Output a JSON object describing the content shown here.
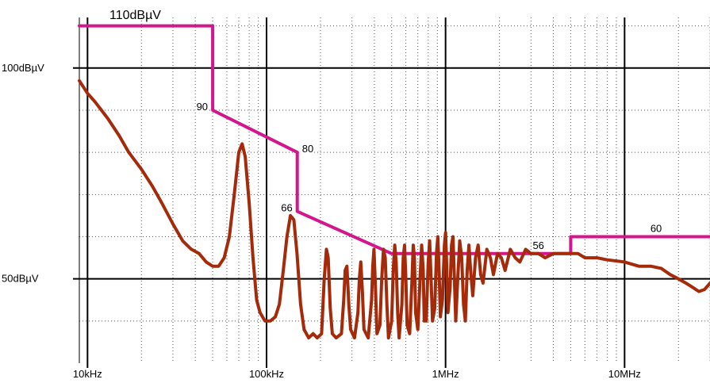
{
  "chart_data": {
    "type": "line",
    "title": "",
    "top_label": "110dBµV",
    "xlabel": "",
    "ylabel": "",
    "x_scale": "log",
    "xlim_hz": [
      9000,
      30000000
    ],
    "ylim_dbuv": [
      30,
      112
    ],
    "grid": true,
    "x_ticks": [
      {
        "value": 10000,
        "label": "10kHz"
      },
      {
        "value": 100000,
        "label": "100kHz"
      },
      {
        "value": 1000000,
        "label": "1MHz"
      },
      {
        "value": 10000000,
        "label": "10MHz"
      }
    ],
    "y_ticks": [
      {
        "value": 100,
        "label": "100dBµV"
      },
      {
        "value": 50,
        "label": "50dBµV"
      }
    ],
    "colors": {
      "limit": "#d4168c",
      "measurement": "#a52a0a",
      "grid": "#000000"
    },
    "series": [
      {
        "role": "limit",
        "points": [
          [
            9000,
            110
          ],
          [
            50000,
            110
          ],
          [
            50000,
            90
          ],
          [
            148500,
            80
          ],
          [
            148500,
            66
          ],
          [
            500000,
            56
          ],
          [
            5000000,
            56
          ],
          [
            5000000,
            60
          ],
          [
            30000000,
            60
          ]
        ]
      },
      {
        "role": "measurement",
        "points": [
          [
            9000,
            97
          ],
          [
            10000,
            94
          ],
          [
            11000,
            92
          ],
          [
            13000,
            88
          ],
          [
            15000,
            84
          ],
          [
            17000,
            80
          ],
          [
            20000,
            76
          ],
          [
            23000,
            72
          ],
          [
            26000,
            68
          ],
          [
            30000,
            63
          ],
          [
            34000,
            59
          ],
          [
            38000,
            57
          ],
          [
            42000,
            56
          ],
          [
            46000,
            54
          ],
          [
            50000,
            53
          ],
          [
            54000,
            53
          ],
          [
            58000,
            55
          ],
          [
            62000,
            60
          ],
          [
            66000,
            70
          ],
          [
            70000,
            80
          ],
          [
            73000,
            82
          ],
          [
            76000,
            79
          ],
          [
            80000,
            68
          ],
          [
            84000,
            55
          ],
          [
            88000,
            45
          ],
          [
            92000,
            42
          ],
          [
            98000,
            40
          ],
          [
            105000,
            40
          ],
          [
            112000,
            41
          ],
          [
            118000,
            44
          ],
          [
            124000,
            52
          ],
          [
            130000,
            60
          ],
          [
            136000,
            65
          ],
          [
            142000,
            64
          ],
          [
            148000,
            56
          ],
          [
            155000,
            44
          ],
          [
            162000,
            38
          ],
          [
            172000,
            36
          ],
          [
            182000,
            37
          ],
          [
            192000,
            36
          ],
          [
            203000,
            37
          ],
          [
            210000,
            50
          ],
          [
            216000,
            57
          ],
          [
            221000,
            55
          ],
          [
            227000,
            43
          ],
          [
            233000,
            37
          ],
          [
            245000,
            36
          ],
          [
            262000,
            37
          ],
          [
            270000,
            45
          ],
          [
            275000,
            52
          ],
          [
            281000,
            53
          ],
          [
            288000,
            44
          ],
          [
            295000,
            38
          ],
          [
            310000,
            36
          ],
          [
            324000,
            42
          ],
          [
            330000,
            50
          ],
          [
            336000,
            54
          ],
          [
            343000,
            47
          ],
          [
            350000,
            38
          ],
          [
            370000,
            36
          ],
          [
            386000,
            45
          ],
          [
            392000,
            53
          ],
          [
            398000,
            57
          ],
          [
            406000,
            48
          ],
          [
            414000,
            37
          ],
          [
            430000,
            39
          ],
          [
            440000,
            50
          ],
          [
            450000,
            57
          ],
          [
            460000,
            55
          ],
          [
            470000,
            44
          ],
          [
            480000,
            36
          ],
          [
            500000,
            40
          ],
          [
            510000,
            52
          ],
          [
            520000,
            58
          ],
          [
            530000,
            54
          ],
          [
            540000,
            42
          ],
          [
            550000,
            36
          ],
          [
            570000,
            44
          ],
          [
            580000,
            55
          ],
          [
            590000,
            58
          ],
          [
            600000,
            50
          ],
          [
            610000,
            39
          ],
          [
            630000,
            37
          ],
          [
            650000,
            50
          ],
          [
            660000,
            58
          ],
          [
            670000,
            55
          ],
          [
            680000,
            42
          ],
          [
            700000,
            38
          ],
          [
            720000,
            50
          ],
          [
            735000,
            58
          ],
          [
            750000,
            52
          ],
          [
            760000,
            40
          ],
          [
            780000,
            40
          ],
          [
            800000,
            54
          ],
          [
            815000,
            59
          ],
          [
            830000,
            50
          ],
          [
            845000,
            40
          ],
          [
            870000,
            43
          ],
          [
            890000,
            56
          ],
          [
            905000,
            60
          ],
          [
            920000,
            52
          ],
          [
            935000,
            41
          ],
          [
            960000,
            45
          ],
          [
            985000,
            58
          ],
          [
            1000000,
            61
          ],
          [
            1015000,
            53
          ],
          [
            1030000,
            42
          ],
          [
            1060000,
            48
          ],
          [
            1080000,
            58
          ],
          [
            1100000,
            60
          ],
          [
            1120000,
            50
          ],
          [
            1140000,
            40
          ],
          [
            1170000,
            50
          ],
          [
            1200000,
            59
          ],
          [
            1230000,
            55
          ],
          [
            1260000,
            44
          ],
          [
            1290000,
            40
          ],
          [
            1320000,
            52
          ],
          [
            1350000,
            58
          ],
          [
            1380000,
            52
          ],
          [
            1420000,
            46
          ],
          [
            1470000,
            55
          ],
          [
            1520000,
            58
          ],
          [
            1570000,
            51
          ],
          [
            1620000,
            49
          ],
          [
            1700000,
            57
          ],
          [
            1780000,
            55
          ],
          [
            1850000,
            51
          ],
          [
            1950000,
            56
          ],
          [
            2050000,
            55
          ],
          [
            2150000,
            52
          ],
          [
            2300000,
            57
          ],
          [
            2450000,
            55
          ],
          [
            2600000,
            54
          ],
          [
            2800000,
            57
          ],
          [
            3000000,
            56
          ],
          [
            3300000,
            56
          ],
          [
            3600000,
            55
          ],
          [
            4000000,
            56
          ],
          [
            4500000,
            56
          ],
          [
            5000000,
            56
          ],
          [
            5500000,
            56
          ],
          [
            6000000,
            55
          ],
          [
            7000000,
            55
          ],
          [
            8000000,
            54.5
          ],
          [
            10000000,
            54
          ],
          [
            12000000,
            53
          ],
          [
            14000000,
            53
          ],
          [
            16000000,
            52.5
          ],
          [
            18000000,
            51
          ],
          [
            20000000,
            50
          ],
          [
            22000000,
            49
          ],
          [
            24000000,
            48
          ],
          [
            26000000,
            47
          ],
          [
            28000000,
            47.5
          ],
          [
            30000000,
            49
          ]
        ]
      }
    ],
    "annotations": [
      {
        "label": "90",
        "x": 50000,
        "y": 90,
        "anchor": "left"
      },
      {
        "label": "80",
        "x": 148500,
        "y": 80,
        "anchor": "right"
      },
      {
        "label": "66",
        "x": 148500,
        "y": 66,
        "anchor": "left"
      },
      {
        "label": "56",
        "x": 3300000,
        "y": 56,
        "anchor": "above"
      },
      {
        "label": "60",
        "x": 15000000,
        "y": 60,
        "anchor": "above"
      }
    ]
  }
}
